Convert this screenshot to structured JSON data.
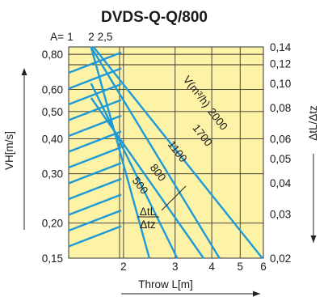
{
  "chart_data": {
    "type": "line",
    "title": "DVDS-Q-Q/800",
    "xlabel": "Throw L[m]",
    "ylabel": "VH[m/s]",
    "y2label": "ΔtL/Δtz",
    "x_scale": "log",
    "y_scale": "log",
    "xlim": [
      1.3,
      6
    ],
    "ylim": [
      0.15,
      0.85
    ],
    "y2lim": [
      0.02,
      0.14
    ],
    "x_tick_labels": [
      "2",
      "3",
      "4",
      "5",
      "6"
    ],
    "x_ticks": [
      2,
      3,
      4,
      5,
      6
    ],
    "y_ticks": [
      0.15,
      0.2,
      0.3,
      0.4,
      0.5,
      0.6,
      0.8
    ],
    "y_tick_labels": [
      "0,15",
      "0,20",
      "0,30",
      "0,40",
      "0,50",
      "0,60",
      "0,80"
    ],
    "y2_ticks": [
      0.02,
      0.03,
      0.04,
      0.05,
      0.06,
      0.08,
      0.1,
      0.12,
      0.14
    ],
    "y2_tick_labels": [
      "0,02",
      "0,03",
      "0,04",
      "0,05",
      "0,06",
      "0,08",
      "0,10",
      "0,12",
      "0,14"
    ],
    "a_label": "A=",
    "a_ticks": [
      "1",
      "2",
      "2,5"
    ],
    "flow_label": "V(m³/h)",
    "ratio_label_num": "ΔtL",
    "ratio_label_den": "Δtz",
    "series": [
      {
        "name": "500",
        "points": [
          [
            1.55,
            0.85
          ],
          [
            2.45,
            0.15
          ]
        ]
      },
      {
        "name": "800",
        "points": [
          [
            1.55,
            0.63
          ],
          [
            3.05,
            0.15
          ]
        ]
      },
      {
        "name": "1100",
        "points": [
          [
            1.55,
            0.56
          ],
          [
            3.75,
            0.15
          ]
        ]
      },
      {
        "name": "1700",
        "points": [
          [
            1.55,
            0.85
          ],
          [
            4.25,
            0.15
          ]
        ]
      },
      {
        "name": "2000",
        "points": [
          [
            1.58,
            0.85
          ],
          [
            5.95,
            0.15
          ]
        ]
      }
    ],
    "grid": true,
    "background": "#fdf3a7",
    "line_color": "#1e9ad8"
  }
}
